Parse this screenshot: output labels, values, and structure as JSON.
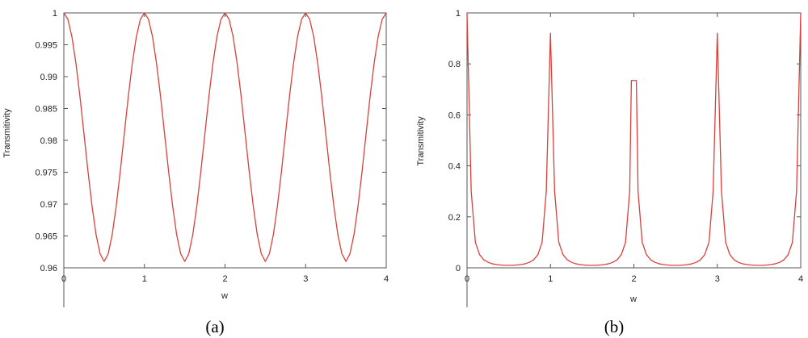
{
  "chart_data": [
    {
      "type": "line",
      "panel_label": "(a)",
      "xlabel": "w",
      "ylabel": "Transmitivity",
      "xlim": [
        0,
        4
      ],
      "ylim": [
        0.96,
        1.0
      ],
      "xticks": [
        0,
        1,
        2,
        3,
        4
      ],
      "xtick_labels": [
        "0",
        "1",
        "2",
        "3",
        "4"
      ],
      "yticks": [
        0.96,
        0.965,
        0.97,
        0.975,
        0.98,
        0.985,
        0.99,
        0.995,
        1.0
      ],
      "ytick_labels": [
        "0.96",
        "0.965",
        "0.97",
        "0.975",
        "0.98",
        "0.985",
        "0.99",
        "0.995",
        "1"
      ],
      "grid": false,
      "line_color": "#d9403a",
      "series": [
        {
          "x": [
            0,
            0.05,
            0.1,
            0.15,
            0.2,
            0.25,
            0.3,
            0.35,
            0.4,
            0.45,
            0.5,
            0.55,
            0.6,
            0.65,
            0.7,
            0.75,
            0.8,
            0.85,
            0.9,
            0.95,
            1,
            1.05,
            1.1,
            1.15,
            1.2,
            1.25,
            1.3,
            1.35,
            1.4,
            1.45,
            1.5,
            1.55,
            1.6,
            1.65,
            1.7,
            1.75,
            1.8,
            1.85,
            1.9,
            1.95,
            2,
            2.05,
            2.1,
            2.15,
            2.2,
            2.25,
            2.3,
            2.35,
            2.4,
            2.45,
            2.5,
            2.55,
            2.6,
            2.65,
            2.7,
            2.75,
            2.8,
            2.85,
            2.9,
            2.95,
            3,
            3.05,
            3.1,
            3.15,
            3.2,
            3.25,
            3.3,
            3.35,
            3.4,
            3.45,
            3.5,
            3.55,
            3.6,
            3.65,
            3.7,
            3.75,
            3.8,
            3.85,
            3.9,
            3.95,
            4
          ],
          "y": [
            1.0,
            0.999,
            0.9963,
            0.9921,
            0.9869,
            0.981,
            0.9751,
            0.9697,
            0.9652,
            0.9622,
            0.961,
            0.9622,
            0.9652,
            0.9697,
            0.9751,
            0.981,
            0.9869,
            0.9921,
            0.9963,
            0.999,
            1.0,
            0.999,
            0.9963,
            0.9921,
            0.9869,
            0.981,
            0.9751,
            0.9697,
            0.9652,
            0.9622,
            0.961,
            0.9622,
            0.9652,
            0.9697,
            0.9751,
            0.981,
            0.9869,
            0.9921,
            0.9963,
            0.999,
            1.0,
            0.999,
            0.9963,
            0.9921,
            0.9869,
            0.981,
            0.9751,
            0.9697,
            0.9652,
            0.9622,
            0.961,
            0.9622,
            0.9652,
            0.9697,
            0.9751,
            0.981,
            0.9869,
            0.9921,
            0.9963,
            0.999,
            1.0,
            0.999,
            0.9963,
            0.9921,
            0.9869,
            0.981,
            0.9751,
            0.9697,
            0.9652,
            0.9622,
            0.961,
            0.9622,
            0.9652,
            0.9697,
            0.9751,
            0.981,
            0.9869,
            0.9921,
            0.9963,
            0.999,
            1.0
          ]
        }
      ]
    },
    {
      "type": "line",
      "panel_label": "(b)",
      "xlabel": "w",
      "ylabel": "Transmitivity",
      "xlim": [
        0,
        4
      ],
      "ylim": [
        0,
        1
      ],
      "xticks": [
        0,
        1,
        2,
        3,
        4
      ],
      "xtick_labels": [
        "0",
        "1",
        "2",
        "3",
        "4"
      ],
      "yticks": [
        0,
        0.2,
        0.4,
        0.6,
        0.8,
        1
      ],
      "ytick_labels": [
        "0",
        "0.2",
        "0.4",
        "0.6",
        "0.8",
        "1"
      ],
      "grid": false,
      "line_color": "#d9403a",
      "series": [
        {
          "x": [
            0,
            0.05,
            0.1,
            0.15,
            0.2,
            0.25,
            0.3,
            0.35,
            0.4,
            0.45,
            0.5,
            0.55,
            0.6,
            0.65,
            0.7,
            0.75,
            0.8,
            0.85,
            0.9,
            0.95,
            1,
            1.05,
            1.1,
            1.15,
            1.2,
            1.25,
            1.3,
            1.35,
            1.4,
            1.45,
            1.5,
            1.55,
            1.6,
            1.65,
            1.7,
            1.75,
            1.8,
            1.85,
            1.9,
            1.95,
            1.97,
            2.03,
            2.05,
            2.1,
            2.15,
            2.2,
            2.25,
            2.3,
            2.35,
            2.4,
            2.45,
            2.5,
            2.55,
            2.6,
            2.65,
            2.7,
            2.75,
            2.8,
            2.85,
            2.9,
            2.95,
            3,
            3.05,
            3.1,
            3.15,
            3.2,
            3.25,
            3.3,
            3.35,
            3.4,
            3.45,
            3.5,
            3.55,
            3.6,
            3.65,
            3.7,
            3.75,
            3.8,
            3.85,
            3.9,
            3.95,
            4
          ],
          "y": [
            1.0,
            0.3,
            0.1,
            0.052,
            0.032,
            0.022,
            0.016,
            0.013,
            0.011,
            0.01,
            0.01,
            0.01,
            0.011,
            0.013,
            0.016,
            0.022,
            0.032,
            0.052,
            0.1,
            0.3,
            0.92,
            0.3,
            0.1,
            0.052,
            0.032,
            0.022,
            0.016,
            0.013,
            0.011,
            0.01,
            0.01,
            0.01,
            0.011,
            0.013,
            0.016,
            0.022,
            0.032,
            0.052,
            0.1,
            0.3,
            0.735,
            0.735,
            0.3,
            0.1,
            0.052,
            0.032,
            0.022,
            0.016,
            0.013,
            0.011,
            0.01,
            0.01,
            0.01,
            0.011,
            0.013,
            0.016,
            0.022,
            0.032,
            0.052,
            0.1,
            0.3,
            0.92,
            0.3,
            0.1,
            0.052,
            0.032,
            0.022,
            0.016,
            0.013,
            0.011,
            0.01,
            0.01,
            0.01,
            0.011,
            0.013,
            0.016,
            0.022,
            0.032,
            0.052,
            0.1,
            0.3,
            1.0
          ]
        }
      ]
    }
  ]
}
